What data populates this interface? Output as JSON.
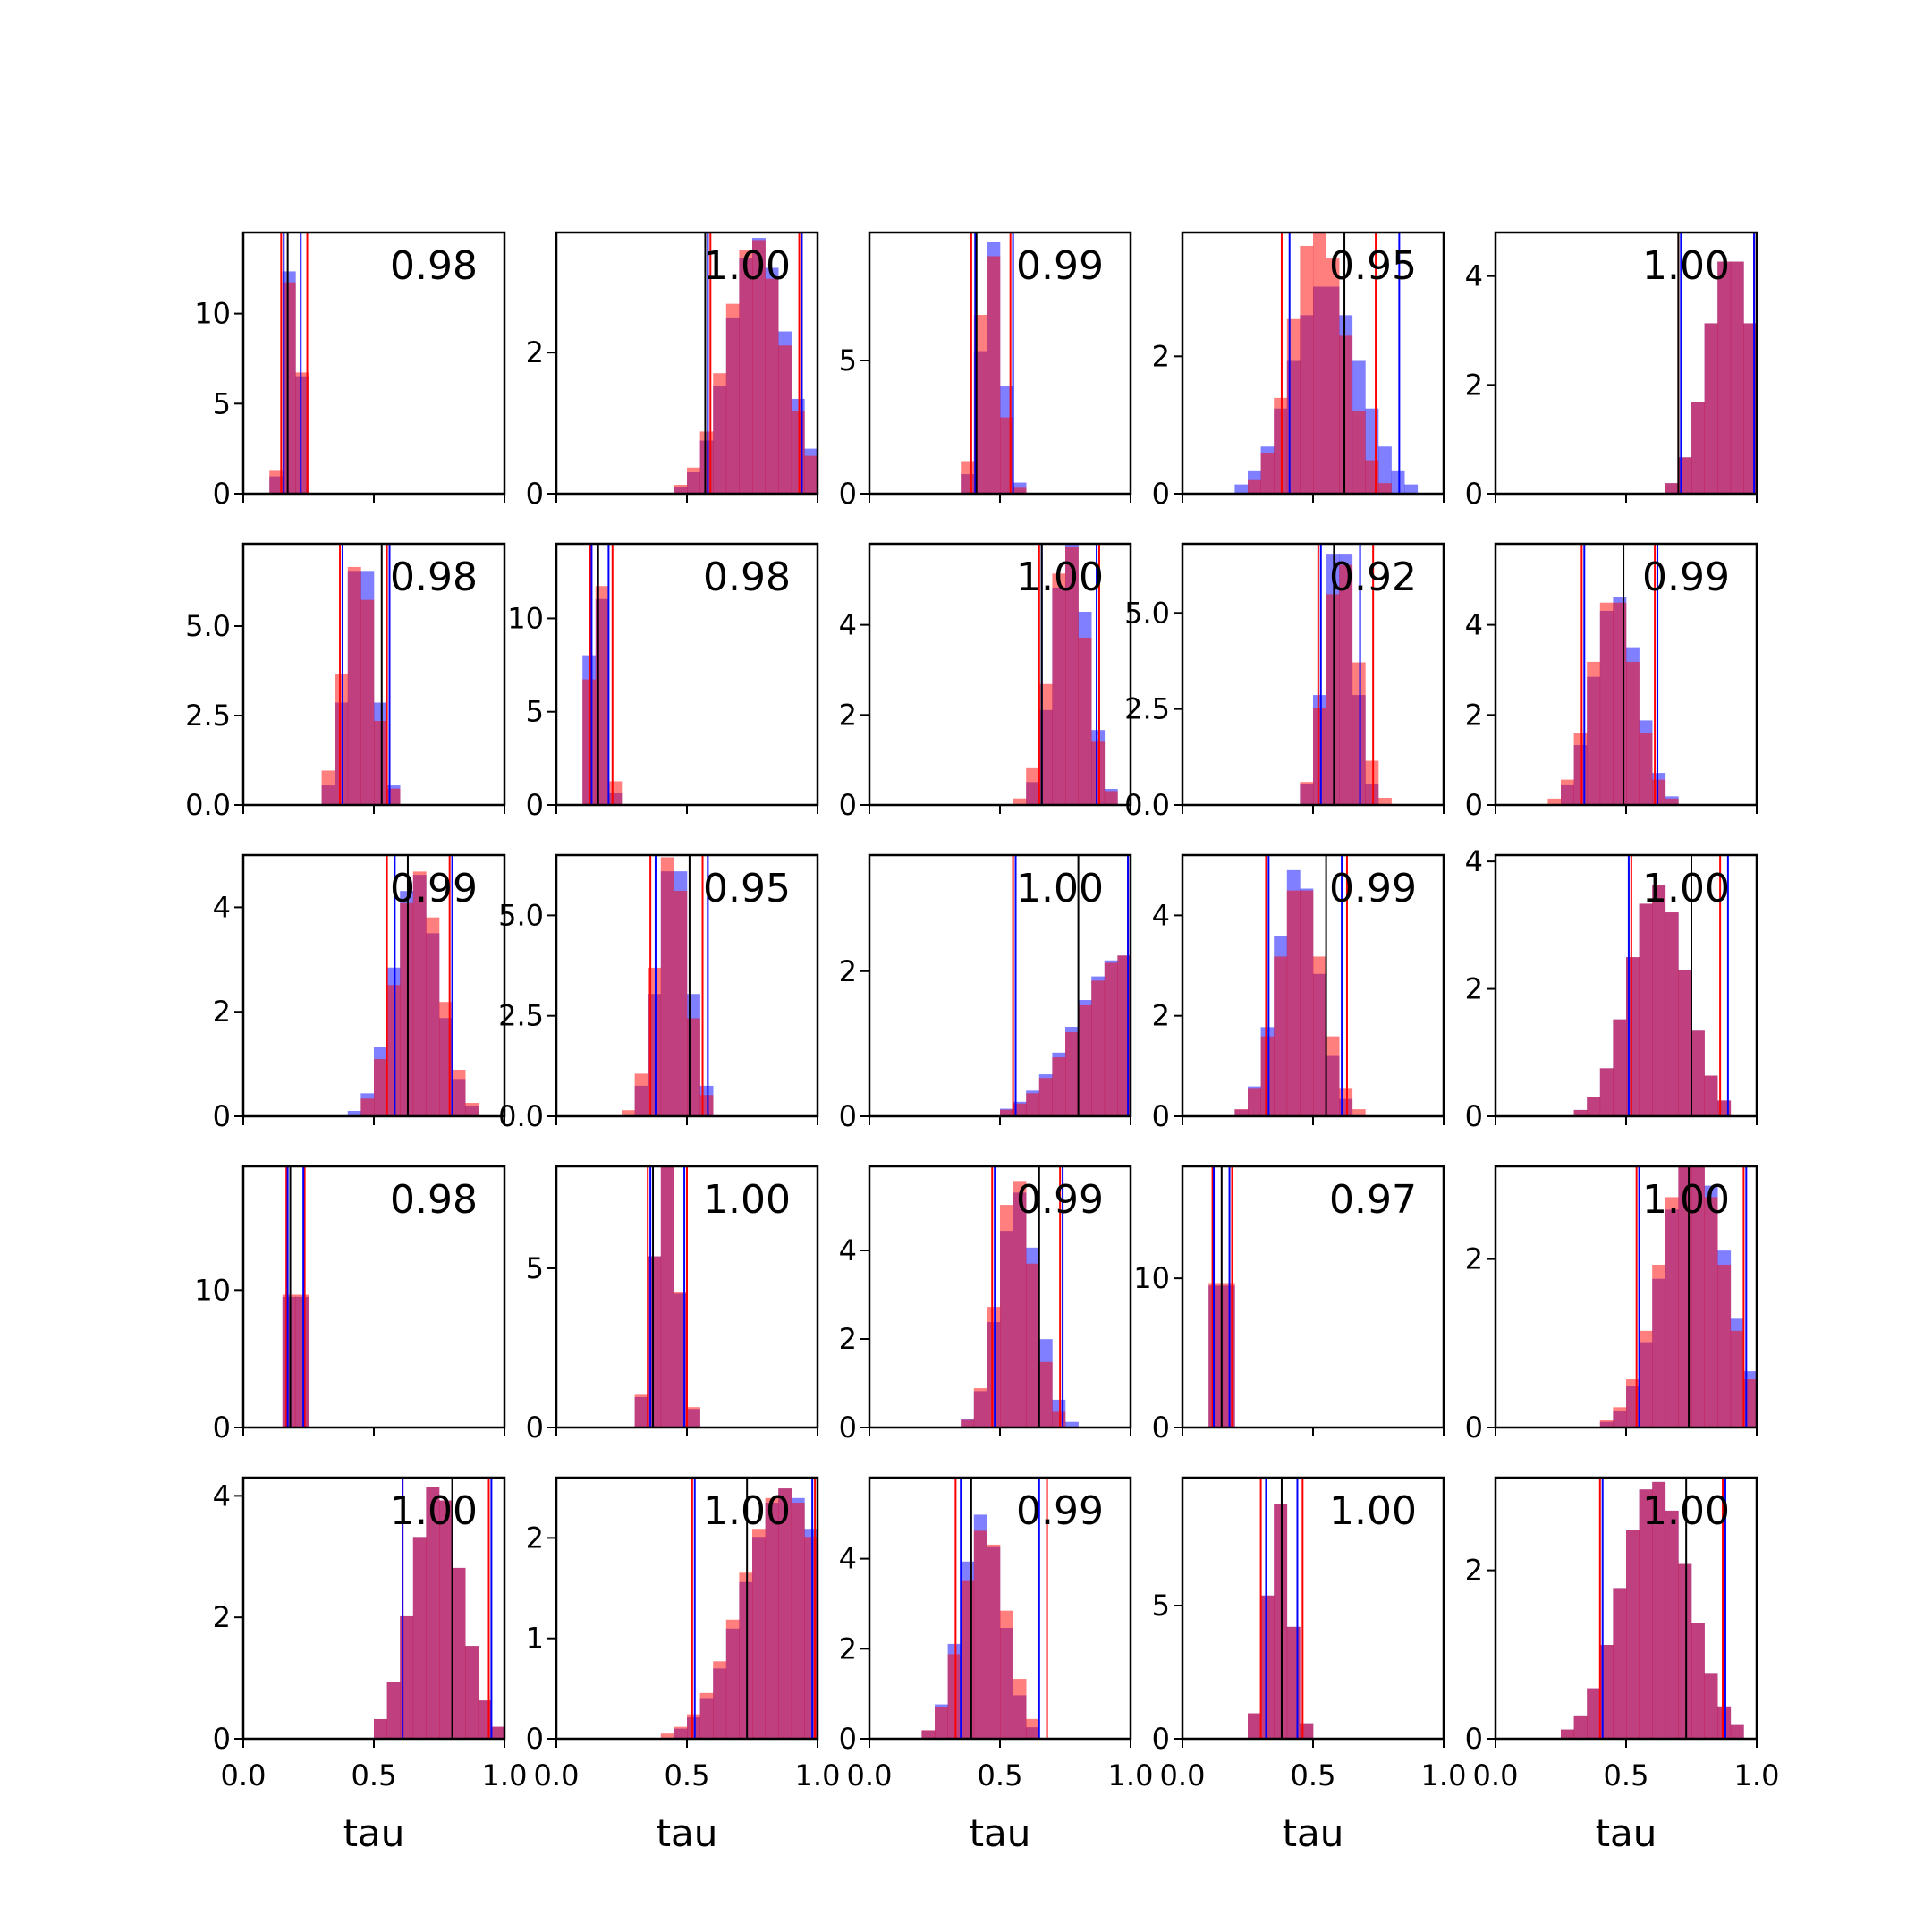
{
  "chart_data": {
    "type": "histogram-grid",
    "rows": 5,
    "cols": 5,
    "xlabel": "tau",
    "xlim": [
      0,
      1
    ],
    "xticks": [
      "0.0",
      "0.5",
      "1.0"
    ],
    "series_colors": {
      "blue": "#0000ff",
      "red": "#ff0000",
      "overlap": "#c0407a",
      "median": "#000000"
    },
    "panels": [
      {
        "label": "0.98",
        "ylim": [
          0,
          14.5
        ],
        "yticks": [
          {
            "v": 0,
            "t": "0"
          },
          {
            "v": 5,
            "t": "5"
          },
          {
            "v": 10,
            "t": "10"
          }
        ],
        "blue": {
          "mean": 0.19,
          "sd": 0.028
        },
        "red": {
          "mean": 0.19,
          "sd": 0.03
        },
        "vlines": {
          "black": 0.17,
          "blue": [
            0.155,
            0.22
          ],
          "red": [
            0.145,
            0.245
          ]
        }
      },
      {
        "label": "1.00",
        "ylim": [
          0,
          3.7
        ],
        "yticks": [
          {
            "v": 0,
            "t": "0"
          },
          {
            "v": 2,
            "t": "2"
          }
        ],
        "blue": {
          "mean": 0.77,
          "sd": 0.11
        },
        "red": {
          "mean": 0.76,
          "sd": 0.11
        },
        "vlines": {
          "black": 0.57,
          "blue": [
            0.58,
            0.94
          ],
          "red": [
            0.59,
            0.93
          ]
        }
      },
      {
        "label": "0.99",
        "ylim": [
          0,
          9.8
        ],
        "yticks": [
          {
            "v": 0,
            "t": "0"
          },
          {
            "v": 5,
            "t": "5"
          }
        ],
        "blue": {
          "mean": 0.47,
          "sd": 0.042
        },
        "red": {
          "mean": 0.46,
          "sd": 0.042
        },
        "vlines": {
          "black": 0.41,
          "blue": [
            0.405,
            0.55
          ],
          "red": [
            0.39,
            0.54
          ]
        }
      },
      {
        "label": "0.95",
        "ylim": [
          0,
          3.8
        ],
        "yticks": [
          {
            "v": 0,
            "t": "0"
          },
          {
            "v": 2,
            "t": "2"
          }
        ],
        "blue": {
          "mean": 0.55,
          "sd": 0.13
        },
        "red": {
          "mean": 0.52,
          "sd": 0.1
        },
        "vlines": {
          "black": 0.62,
          "blue": [
            0.41,
            0.83
          ],
          "red": [
            0.38,
            0.74
          ]
        }
      },
      {
        "label": "1.00",
        "ylim": [
          0,
          4.8
        ],
        "yticks": [
          {
            "v": 0,
            "t": "0"
          },
          {
            "v": 2,
            "t": "2"
          },
          {
            "v": 4,
            "t": "4"
          }
        ],
        "blue": {
          "mean": 0.9,
          "sd": 0.09
        },
        "red": {
          "mean": 0.9,
          "sd": 0.09
        },
        "vlines": {
          "black": 0.7,
          "blue": [
            0.71,
            0.99
          ],
          "red": [
            0.7,
            0.99
          ]
        }
      },
      {
        "label": "0.98",
        "ylim": [
          0,
          7.3
        ],
        "yticks": [
          {
            "v": 0,
            "t": "0.0"
          },
          {
            "v": 2.5,
            "t": "2.5"
          },
          {
            "v": 5,
            "t": "5.0"
          }
        ],
        "blue": {
          "mean": 0.45,
          "sd": 0.055
        },
        "red": {
          "mean": 0.44,
          "sd": 0.058
        },
        "vlines": {
          "black": 0.53,
          "blue": [
            0.38,
            0.56
          ],
          "red": [
            0.37,
            0.55
          ]
        }
      },
      {
        "label": "0.98",
        "ylim": [
          0,
          14
        ],
        "yticks": [
          {
            "v": 0,
            "t": "0"
          },
          {
            "v": 5,
            "t": "5"
          },
          {
            "v": 10,
            "t": "10"
          }
        ],
        "blue": {
          "mean": 0.155,
          "sd": 0.028
        },
        "red": {
          "mean": 0.16,
          "sd": 0.03
        },
        "vlines": {
          "black": 0.16,
          "blue": [
            0.135,
            0.2
          ],
          "red": [
            0.13,
            0.215
          ]
        }
      },
      {
        "label": "1.00",
        "ylim": [
          0,
          5.8
        ],
        "yticks": [
          {
            "v": 0,
            "t": "0"
          },
          {
            "v": 2,
            "t": "2"
          },
          {
            "v": 4,
            "t": "4"
          }
        ],
        "blue": {
          "mean": 0.77,
          "sd": 0.065
        },
        "red": {
          "mean": 0.76,
          "sd": 0.068
        },
        "vlines": {
          "black": 0.66,
          "blue": [
            0.66,
            0.87
          ],
          "red": [
            0.65,
            0.88
          ]
        }
      },
      {
        "label": "0.92",
        "ylim": [
          0,
          6.8
        ],
        "yticks": [
          {
            "v": 0,
            "t": "0.0"
          },
          {
            "v": 2.5,
            "t": "2.5"
          },
          {
            "v": 5,
            "t": "5.0"
          }
        ],
        "blue": {
          "mean": 0.6,
          "sd": 0.055
        },
        "red": {
          "mean": 0.61,
          "sd": 0.062
        },
        "vlines": {
          "black": 0.58,
          "blue": [
            0.53,
            0.68
          ],
          "red": [
            0.52,
            0.73
          ]
        }
      },
      {
        "label": "0.99",
        "ylim": [
          0,
          5.8
        ],
        "yticks": [
          {
            "v": 0,
            "t": "0"
          },
          {
            "v": 2,
            "t": "2"
          },
          {
            "v": 4,
            "t": "4"
          }
        ],
        "blue": {
          "mean": 0.46,
          "sd": 0.085
        },
        "red": {
          "mean": 0.45,
          "sd": 0.085
        },
        "vlines": {
          "black": 0.49,
          "blue": [
            0.34,
            0.62
          ],
          "red": [
            0.33,
            0.61
          ]
        }
      },
      {
        "label": "0.99",
        "ylim": [
          0,
          5
        ],
        "yticks": [
          {
            "v": 0,
            "t": "0"
          },
          {
            "v": 2,
            "t": "2"
          },
          {
            "v": 4,
            "t": "4"
          }
        ],
        "blue": {
          "mean": 0.66,
          "sd": 0.085
        },
        "red": {
          "mean": 0.67,
          "sd": 0.085
        },
        "vlines": {
          "black": 0.63,
          "blue": [
            0.58,
            0.8
          ],
          "red": [
            0.55,
            0.79
          ]
        }
      },
      {
        "label": "0.95",
        "ylim": [
          0,
          6.5
        ],
        "yticks": [
          {
            "v": 0,
            "t": "0.0"
          },
          {
            "v": 2.5,
            "t": "2.5"
          },
          {
            "v": 5,
            "t": "5.0"
          }
        ],
        "blue": {
          "mean": 0.45,
          "sd": 0.06
        },
        "red": {
          "mean": 0.44,
          "sd": 0.06
        },
        "vlines": {
          "black": 0.51,
          "blue": [
            0.38,
            0.58
          ],
          "red": [
            0.36,
            0.56
          ]
        }
      },
      {
        "label": "1.00",
        "ylim": [
          0,
          3.6
        ],
        "yticks": [
          {
            "v": 0,
            "t": "0"
          },
          {
            "v": 2,
            "t": "2"
          }
        ],
        "blue": {
          "mean": 0.97,
          "sd": 0.18
        },
        "red": {
          "mean": 0.98,
          "sd": 0.18
        },
        "vlines": {
          "black": 0.8,
          "blue": [
            0.56,
            0.99
          ],
          "red": [
            0.55,
            0.99
          ]
        }
      },
      {
        "label": "0.99",
        "ylim": [
          0,
          5.2
        ],
        "yticks": [
          {
            "v": 0,
            "t": "0"
          },
          {
            "v": 2,
            "t": "2"
          },
          {
            "v": 4,
            "t": "4"
          }
        ],
        "blue": {
          "mean": 0.44,
          "sd": 0.08
        },
        "red": {
          "mean": 0.45,
          "sd": 0.085
        },
        "vlines": {
          "black": 0.55,
          "blue": [
            0.33,
            0.61
          ],
          "red": [
            0.32,
            0.63
          ]
        }
      },
      {
        "label": "1.00",
        "ylim": [
          0,
          4.1
        ],
        "yticks": [
          {
            "v": 0,
            "t": "0"
          },
          {
            "v": 2,
            "t": "2"
          },
          {
            "v": 4,
            "t": "4"
          }
        ],
        "blue": {
          "mean": 0.62,
          "sd": 0.11
        },
        "red": {
          "mean": 0.62,
          "sd": 0.11
        },
        "vlines": {
          "black": 0.75,
          "blue": [
            0.51,
            0.89
          ],
          "red": [
            0.52,
            0.86
          ]
        }
      },
      {
        "label": "0.98",
        "ylim": [
          0,
          19
        ],
        "yticks": [
          {
            "v": 0,
            "t": "0"
          },
          {
            "v": 10,
            "t": "10"
          }
        ],
        "blue": {
          "mean": 0.2,
          "sd": 0.022
        },
        "red": {
          "mean": 0.2,
          "sd": 0.024
        },
        "vlines": {
          "black": 0.18,
          "blue": [
            0.17,
            0.23
          ],
          "red": [
            0.165,
            0.235
          ]
        }
      },
      {
        "label": "1.00",
        "ylim": [
          0,
          8.2
        ],
        "yticks": [
          {
            "v": 0,
            "t": "0"
          },
          {
            "v": 5,
            "t": "5"
          }
        ],
        "blue": {
          "mean": 0.42,
          "sd": 0.045
        },
        "red": {
          "mean": 0.42,
          "sd": 0.046
        },
        "vlines": {
          "black": 0.37,
          "blue": [
            0.36,
            0.49
          ],
          "red": [
            0.35,
            0.5
          ]
        }
      },
      {
        "label": "0.99",
        "ylim": [
          0,
          5.9
        ],
        "yticks": [
          {
            "v": 0,
            "t": "0"
          },
          {
            "v": 2,
            "t": "2"
          },
          {
            "v": 4,
            "t": "4"
          }
        ],
        "blue": {
          "mean": 0.57,
          "sd": 0.075
        },
        "red": {
          "mean": 0.56,
          "sd": 0.07
        },
        "vlines": {
          "black": 0.65,
          "blue": [
            0.48,
            0.74
          ],
          "red": [
            0.47,
            0.73
          ]
        }
      },
      {
        "label": "0.97",
        "ylim": [
          0,
          17.5
        ],
        "yticks": [
          {
            "v": 0,
            "t": "0"
          },
          {
            "v": 10,
            "t": "10"
          }
        ],
        "blue": {
          "mean": 0.15,
          "sd": 0.022
        },
        "red": {
          "mean": 0.15,
          "sd": 0.025
        },
        "vlines": {
          "black": 0.15,
          "blue": [
            0.12,
            0.18
          ],
          "red": [
            0.115,
            0.19
          ]
        }
      },
      {
        "label": "1.00",
        "ylim": [
          0,
          3.1
        ],
        "yticks": [
          {
            "v": 0,
            "t": "0"
          },
          {
            "v": 2,
            "t": "2"
          }
        ],
        "blue": {
          "mean": 0.76,
          "sd": 0.12
        },
        "red": {
          "mean": 0.75,
          "sd": 0.12
        },
        "vlines": {
          "black": 0.74,
          "blue": [
            0.55,
            0.96
          ],
          "red": [
            0.54,
            0.95
          ]
        }
      },
      {
        "label": "1.00",
        "ylim": [
          0,
          4.3
        ],
        "yticks": [
          {
            "v": 0,
            "t": "0"
          },
          {
            "v": 2,
            "t": "2"
          },
          {
            "v": 4,
            "t": "4"
          }
        ],
        "blue": {
          "mean": 0.74,
          "sd": 0.095
        },
        "red": {
          "mean": 0.74,
          "sd": 0.095
        },
        "vlines": {
          "black": 0.8,
          "blue": [
            0.61,
            0.95
          ],
          "red": [
            0.61,
            0.94
          ]
        }
      },
      {
        "label": "1.00",
        "ylim": [
          0,
          2.6
        ],
        "yticks": [
          {
            "v": 0,
            "t": "0"
          },
          {
            "v": 1,
            "t": "1"
          },
          {
            "v": 2,
            "t": "2"
          }
        ],
        "blue": {
          "mean": 0.88,
          "sd": 0.16
        },
        "red": {
          "mean": 0.87,
          "sd": 0.16
        },
        "vlines": {
          "black": 0.73,
          "blue": [
            0.53,
            0.98
          ],
          "red": [
            0.52,
            0.99
          ]
        }
      },
      {
        "label": "0.99",
        "ylim": [
          0,
          5.8
        ],
        "yticks": [
          {
            "v": 0,
            "t": "0"
          },
          {
            "v": 2,
            "t": "2"
          },
          {
            "v": 4,
            "t": "4"
          }
        ],
        "blue": {
          "mean": 0.43,
          "sd": 0.08
        },
        "red": {
          "mean": 0.44,
          "sd": 0.085
        },
        "vlines": {
          "black": 0.39,
          "blue": [
            0.35,
            0.65
          ],
          "red": [
            0.33,
            0.68
          ]
        }
      },
      {
        "label": "1.00",
        "ylim": [
          0,
          9.8
        ],
        "yticks": [
          {
            "v": 0,
            "t": "0"
          },
          {
            "v": 5,
            "t": "5"
          }
        ],
        "blue": {
          "mean": 0.37,
          "sd": 0.045
        },
        "red": {
          "mean": 0.37,
          "sd": 0.045
        },
        "vlines": {
          "black": 0.38,
          "blue": [
            0.32,
            0.44
          ],
          "red": [
            0.3,
            0.46
          ]
        }
      },
      {
        "label": "1.00",
        "ylim": [
          0,
          3.1
        ],
        "yticks": [
          {
            "v": 0,
            "t": "0"
          },
          {
            "v": 2,
            "t": "2"
          }
        ],
        "blue": {
          "mean": 0.61,
          "sd": 0.13
        },
        "red": {
          "mean": 0.61,
          "sd": 0.13
        },
        "vlines": {
          "black": 0.73,
          "blue": [
            0.41,
            0.88
          ],
          "red": [
            0.4,
            0.87
          ]
        }
      }
    ]
  }
}
